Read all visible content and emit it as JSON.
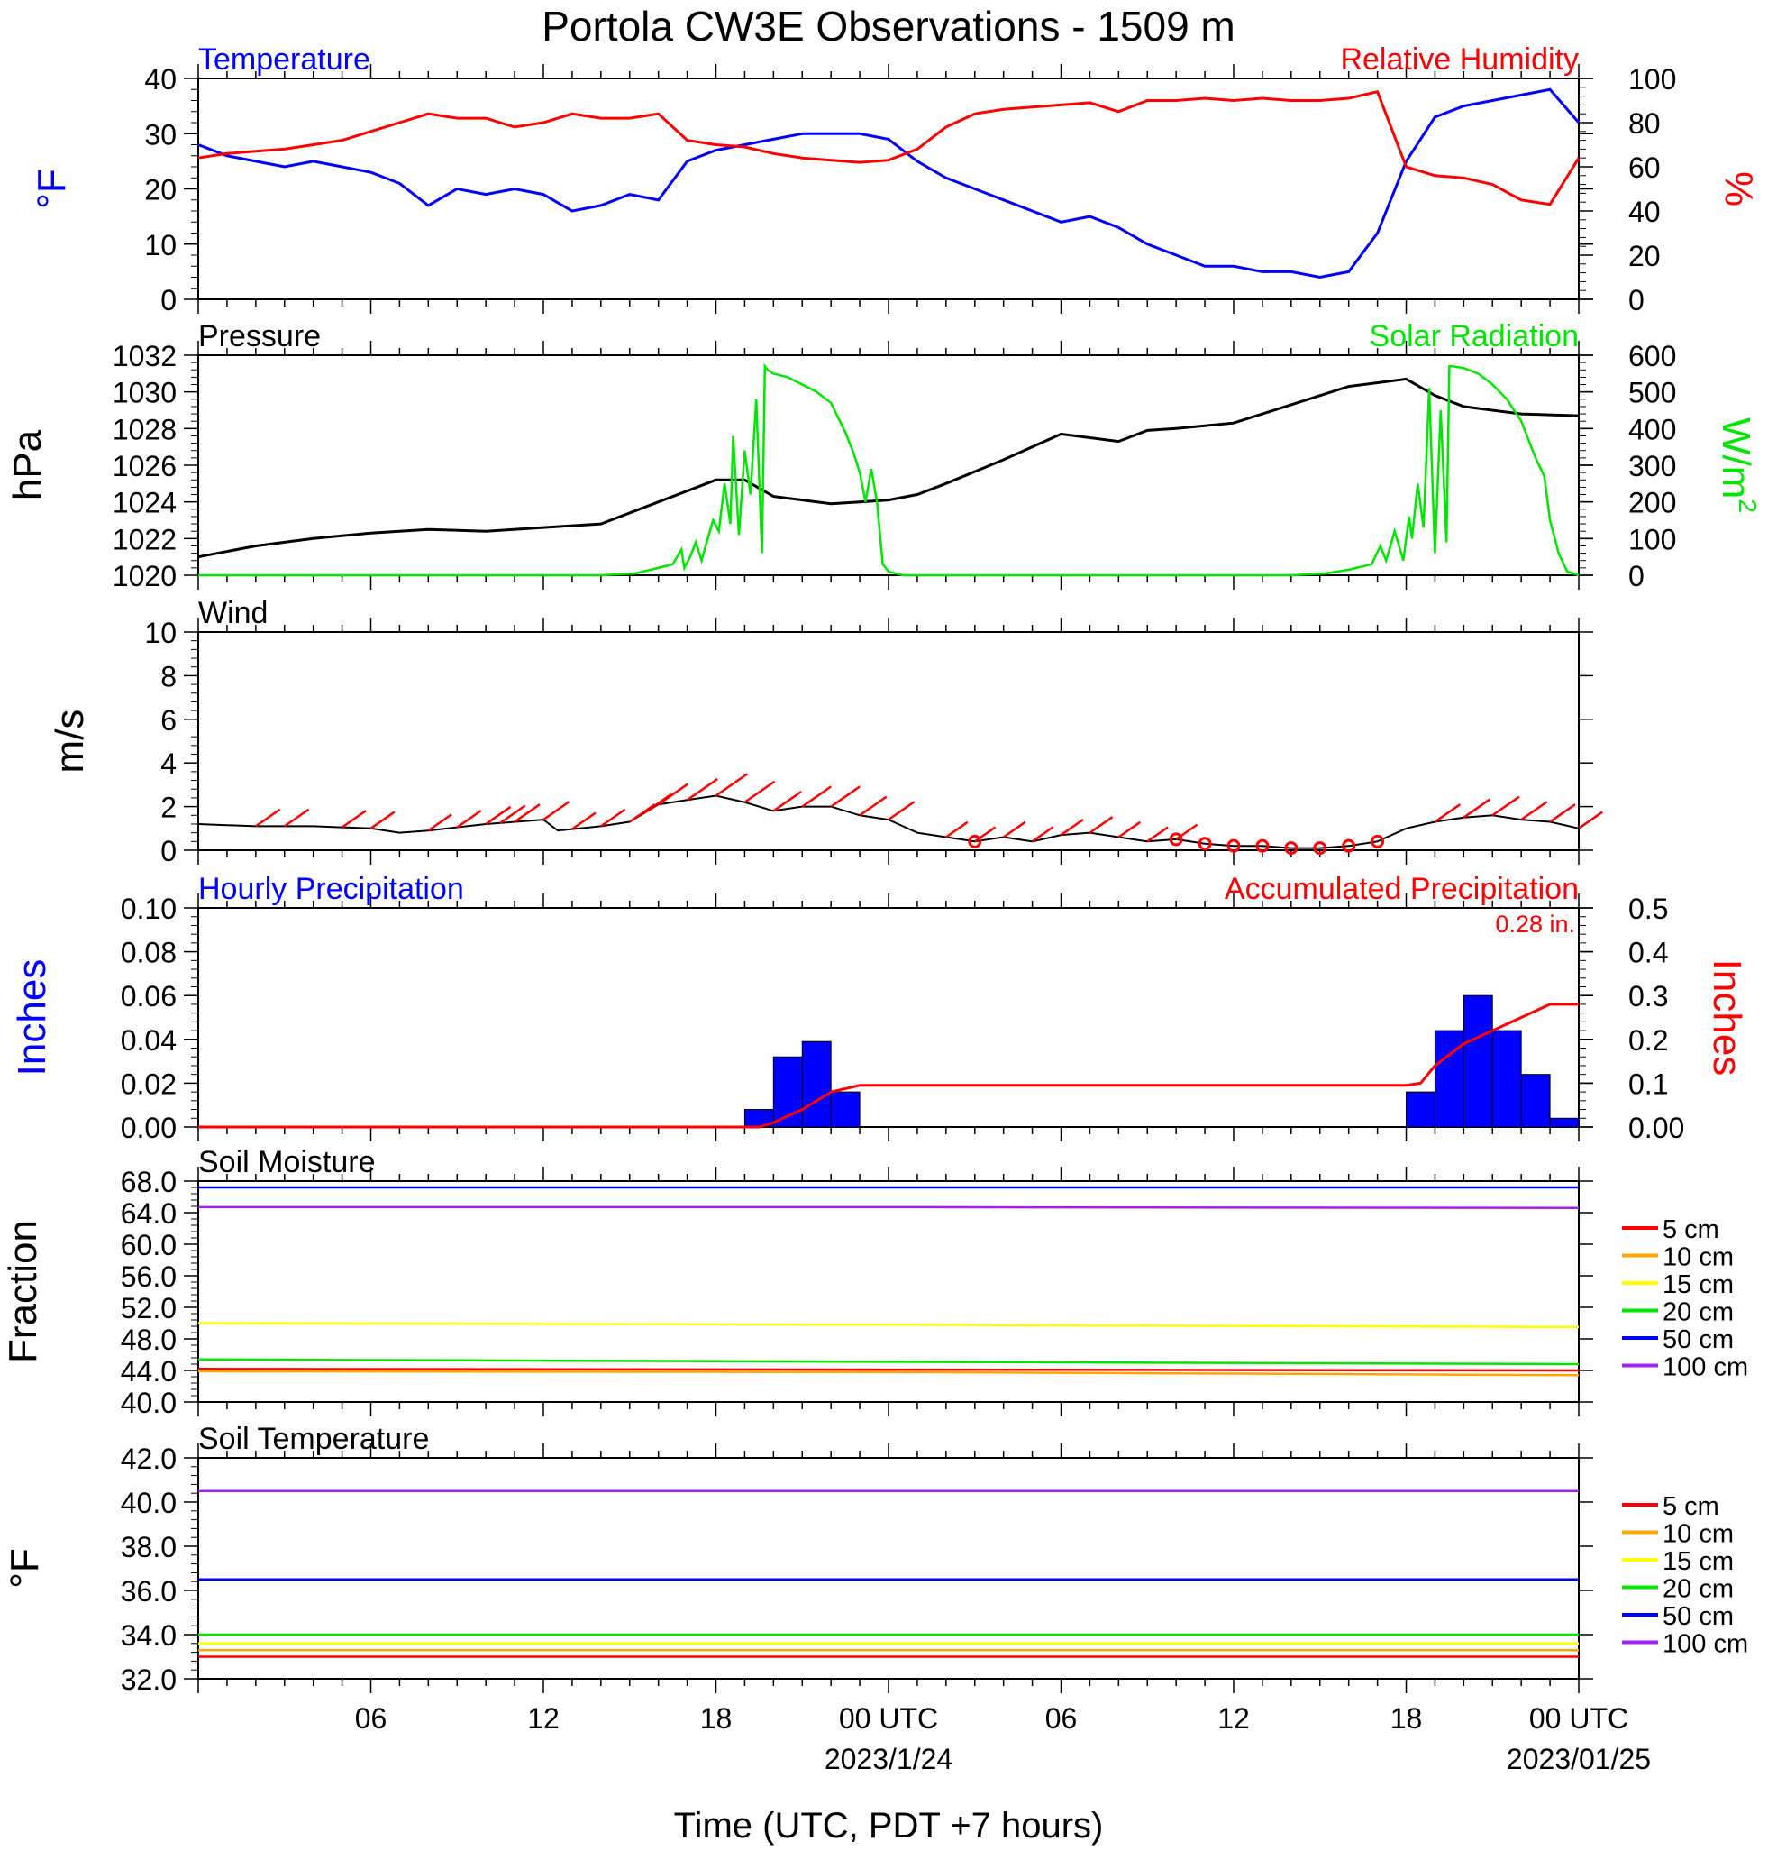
{
  "title": "Portola CW3E Observations - 1509 m",
  "xlabel": "Time (UTC, PDT +7 hours)",
  "x_ticks": [
    {
      "hour": 6,
      "label": "06",
      "date": ""
    },
    {
      "hour": 12,
      "label": "12",
      "date": ""
    },
    {
      "hour": 18,
      "label": "18",
      "date": ""
    },
    {
      "hour": 24,
      "label": "00 UTC",
      "date": "2023/1/24"
    },
    {
      "hour": 30,
      "label": "06",
      "date": ""
    },
    {
      "hour": 36,
      "label": "12",
      "date": ""
    },
    {
      "hour": 42,
      "label": "18",
      "date": ""
    },
    {
      "hour": 48,
      "label": "00 UTC",
      "date": "2023/01/25"
    }
  ],
  "colors": {
    "blue": "#0000ff",
    "red": "#ff0000",
    "green": "#00e600",
    "black": "#000000",
    "orange": "#ffa500",
    "yellow": "#ffff00",
    "purple": "#a020f0",
    "fill_blue": "#0000ff"
  },
  "chart_data": [
    {
      "id": "temp_rh",
      "type": "line",
      "left_title": "Temperature",
      "right_title": "Relative Humidity",
      "ylabel_left": "°F",
      "ylabel_right": "%",
      "ylim_left": [
        0,
        40
      ],
      "ylim_right": [
        0,
        100
      ],
      "yticks_left": [
        "0",
        "10",
        "20",
        "30",
        "40"
      ],
      "yticks_right": [
        "0",
        "20",
        "40",
        "60",
        "80",
        "100"
      ],
      "xlim_hours": [
        0,
        48
      ],
      "series": [
        {
          "axis": "left",
          "color": "#0000ff",
          "x": [
            0,
            1,
            2,
            3,
            4,
            5,
            6,
            7,
            8,
            9,
            10,
            11,
            12,
            13,
            14,
            15,
            16,
            17,
            18,
            19,
            20,
            21,
            22,
            23,
            24,
            25,
            26,
            27,
            28,
            29,
            30,
            31,
            32,
            33,
            34,
            35,
            36,
            37,
            38,
            39,
            40,
            41,
            42,
            43,
            44,
            45,
            46,
            47,
            48
          ],
          "y": [
            28,
            26,
            25,
            24,
            25,
            24,
            23,
            21,
            17,
            20,
            19,
            20,
            19,
            16,
            17,
            19,
            18,
            25,
            27,
            28,
            29,
            30,
            30,
            30,
            29,
            25,
            22,
            20,
            18,
            16,
            14,
            15,
            13,
            10,
            8,
            6,
            6,
            5,
            5,
            4,
            5,
            12,
            25,
            33,
            35,
            36,
            37,
            38,
            32
          ]
        },
        {
          "axis": "right",
          "color": "#ff0000",
          "x": [
            0,
            1,
            2,
            3,
            4,
            5,
            6,
            7,
            8,
            9,
            10,
            11,
            12,
            13,
            14,
            15,
            16,
            17,
            18,
            19,
            20,
            21,
            22,
            23,
            24,
            25,
            26,
            27,
            28,
            29,
            30,
            31,
            32,
            33,
            34,
            35,
            36,
            37,
            38,
            39,
            40,
            41,
            42,
            43,
            44,
            45,
            46,
            47,
            48
          ],
          "y": [
            64,
            66,
            67,
            68,
            70,
            72,
            76,
            80,
            84,
            82,
            82,
            78,
            80,
            84,
            82,
            82,
            84,
            72,
            70,
            69,
            66,
            64,
            63,
            62,
            63,
            68,
            78,
            84,
            86,
            87,
            88,
            89,
            85,
            90,
            90,
            91,
            90,
            91,
            90,
            90,
            91,
            94,
            60,
            56,
            55,
            52,
            45,
            43,
            64
          ]
        }
      ]
    },
    {
      "id": "pressure_solar",
      "type": "line",
      "left_title": "Pressure",
      "right_title": "Solar Radiation",
      "ylabel_left": "hPa",
      "ylabel_right": "W/m",
      "ylabel_right_sup": "2",
      "ylim_left": [
        1020,
        1032
      ],
      "ylim_right": [
        0,
        600
      ],
      "yticks_left": [
        "1020",
        "1022",
        "1024",
        "1026",
        "1028",
        "1030",
        "1032"
      ],
      "yticks_right": [
        "0",
        "100",
        "200",
        "300",
        "400",
        "500",
        "600"
      ],
      "series": [
        {
          "axis": "left",
          "color": "#000000",
          "x": [
            0,
            2,
            4,
            6,
            8,
            10,
            12,
            14,
            16,
            18,
            19,
            20,
            21,
            22,
            23,
            24,
            25,
            26,
            28,
            30,
            32,
            33,
            34,
            36,
            38,
            40,
            42,
            43,
            44,
            46,
            48
          ],
          "y": [
            1021.0,
            1021.6,
            1022.0,
            1022.3,
            1022.5,
            1022.4,
            1022.6,
            1022.8,
            1024.0,
            1025.2,
            1025.2,
            1024.3,
            1024.1,
            1023.9,
            1024.0,
            1024.1,
            1024.4,
            1025.0,
            1026.3,
            1027.7,
            1027.3,
            1027.9,
            1028.0,
            1028.3,
            1029.3,
            1030.3,
            1030.7,
            1029.8,
            1029.2,
            1028.8,
            1028.7
          ]
        },
        {
          "axis": "right",
          "color": "#00e600",
          "x": [
            0,
            14,
            15.2,
            16,
            16.5,
            16.8,
            16.9,
            17.1,
            17.3,
            17.5,
            17.9,
            18.1,
            18.3,
            18.5,
            18.6,
            18.8,
            19.0,
            19.2,
            19.4,
            19.6,
            19.7,
            19.8,
            20.0,
            20.5,
            21.0,
            21.5,
            22.0,
            22.5,
            22.8,
            23.0,
            23.2,
            23.4,
            23.6,
            23.8,
            24.0,
            24.5,
            38,
            39.2,
            40,
            40.8,
            41.1,
            41.3,
            41.6,
            41.9,
            42.1,
            42.2,
            42.4,
            42.6,
            42.8,
            43.0,
            43.2,
            43.4,
            43.5,
            43.6,
            44.0,
            44.5,
            45.0,
            45.5,
            46.0,
            46.5,
            46.8,
            47.0,
            47.3,
            47.6,
            48
          ],
          "y": [
            0,
            0,
            5,
            20,
            30,
            70,
            20,
            50,
            90,
            40,
            150,
            120,
            250,
            140,
            380,
            110,
            340,
            220,
            480,
            60,
            570,
            560,
            550,
            540,
            520,
            500,
            470,
            390,
            330,
            280,
            200,
            290,
            200,
            30,
            10,
            0,
            0,
            5,
            15,
            30,
            80,
            40,
            120,
            40,
            160,
            100,
            250,
            130,
            510,
            60,
            450,
            90,
            570,
            570,
            565,
            550,
            520,
            480,
            420,
            320,
            270,
            150,
            60,
            10,
            0
          ]
        }
      ]
    },
    {
      "id": "wind",
      "type": "line",
      "left_title": "Wind",
      "ylabel_left": "m/s",
      "ylim_left": [
        0,
        10
      ],
      "yticks_left": [
        "0",
        "2",
        "4",
        "6",
        "8",
        "10"
      ],
      "series": [
        {
          "axis": "left",
          "color": "#000000",
          "x": [
            0,
            2,
            4,
            6,
            7,
            8,
            10,
            12,
            12.5,
            14,
            15,
            16,
            17,
            18,
            19,
            20,
            21,
            22,
            23,
            24,
            25,
            26,
            27,
            28,
            29,
            30,
            31,
            32,
            33,
            34,
            35,
            36,
            37,
            38,
            39,
            40,
            41,
            42,
            43,
            44,
            45,
            46,
            47,
            48
          ],
          "y": [
            1.2,
            1.1,
            1.1,
            1.0,
            0.8,
            0.9,
            1.2,
            1.4,
            0.9,
            1.1,
            1.3,
            2.1,
            2.3,
            2.5,
            2.2,
            1.8,
            2.0,
            2.0,
            1.6,
            1.4,
            0.8,
            0.6,
            0.4,
            0.6,
            0.4,
            0.7,
            0.8,
            0.6,
            0.4,
            0.5,
            0.3,
            0.2,
            0.2,
            0.1,
            0.1,
            0.2,
            0.4,
            1.0,
            1.3,
            1.5,
            1.6,
            1.4,
            1.3,
            1.0
          ]
        }
      ],
      "barbs_hours": [
        2,
        3,
        5,
        6,
        8,
        9,
        10,
        10.5,
        11,
        12,
        13,
        14,
        15,
        15.5,
        16,
        17,
        18,
        19,
        20,
        21,
        22,
        23,
        24,
        26,
        27,
        28,
        29,
        30,
        31,
        32,
        33,
        34,
        43,
        44,
        45,
        46,
        47,
        48
      ],
      "calm_hours": [
        27,
        34,
        35,
        36,
        37,
        38,
        39,
        40,
        41
      ]
    },
    {
      "id": "precip",
      "type": "bar",
      "left_title": "Hourly Precipitation",
      "right_title": "Accumulated Precipitation",
      "annotation": "0.28 in.",
      "ylabel_left": "Inches",
      "ylabel_right": "Inches",
      "ylim_left": [
        0,
        0.1
      ],
      "ylim_right": [
        0,
        0.5
      ],
      "yticks_left": [
        "0.00",
        "0.02",
        "0.04",
        "0.06",
        "0.08",
        "0.10"
      ],
      "yticks_right": [
        "0.00",
        "0.1",
        "0.2",
        "0.3",
        "0.4",
        "0.5"
      ],
      "bars": [
        {
          "start": 19,
          "value": 0.008
        },
        {
          "start": 20,
          "value": 0.032
        },
        {
          "start": 21,
          "value": 0.039
        },
        {
          "start": 22,
          "value": 0.016
        },
        {
          "start": 42,
          "value": 0.016
        },
        {
          "start": 43,
          "value": 0.044
        },
        {
          "start": 44,
          "value": 0.06
        },
        {
          "start": 45,
          "value": 0.044
        },
        {
          "start": 46,
          "value": 0.024
        },
        {
          "start": 47,
          "value": 0.004
        }
      ],
      "accum": {
        "color": "#ff0000",
        "x": [
          0,
          19.5,
          20,
          21,
          22,
          23,
          42,
          42.5,
          43,
          44,
          45,
          46,
          47,
          48
        ],
        "y": [
          0,
          0,
          0.01,
          0.04,
          0.08,
          0.095,
          0.095,
          0.1,
          0.14,
          0.19,
          0.22,
          0.25,
          0.28,
          0.28
        ]
      }
    },
    {
      "id": "soil_moisture",
      "type": "line",
      "left_title": "Soil Moisture",
      "ylabel_left": "Fraction",
      "ylim_left": [
        40,
        68
      ],
      "yticks_left": [
        "40.0",
        "44.0",
        "48.0",
        "52.0",
        "56.0",
        "60.0",
        "64.0",
        "68.0"
      ],
      "legend": [
        "5 cm",
        "10 cm",
        "15 cm",
        "20 cm",
        "50 cm",
        "100 cm"
      ],
      "series": [
        {
          "name": "5 cm",
          "color": "#ff0000",
          "x": [
            0,
            24,
            48
          ],
          "y": [
            44.2,
            44.1,
            44.0
          ]
        },
        {
          "name": "10 cm",
          "color": "#ffa500",
          "x": [
            0,
            24,
            48
          ],
          "y": [
            43.9,
            43.8,
            43.4
          ]
        },
        {
          "name": "15 cm",
          "color": "#ffff00",
          "x": [
            0,
            24,
            48
          ],
          "y": [
            50.0,
            49.8,
            49.5
          ]
        },
        {
          "name": "20 cm",
          "color": "#00e600",
          "x": [
            0,
            24,
            48
          ],
          "y": [
            45.4,
            45.1,
            44.8
          ]
        },
        {
          "name": "50 cm",
          "color": "#0000ff",
          "x": [
            0,
            24,
            48
          ],
          "y": [
            67.2,
            67.2,
            67.2
          ]
        },
        {
          "name": "100 cm",
          "color": "#a020f0",
          "x": [
            0,
            24,
            48
          ],
          "y": [
            64.7,
            64.7,
            64.6
          ]
        }
      ]
    },
    {
      "id": "soil_temp",
      "type": "line",
      "left_title": "Soil Temperature",
      "ylabel_left": "°F",
      "ylim_left": [
        32,
        42
      ],
      "yticks_left": [
        "32.0",
        "34.0",
        "36.0",
        "38.0",
        "40.0",
        "42.0"
      ],
      "legend": [
        "5 cm",
        "10 cm",
        "15 cm",
        "20 cm",
        "50 cm",
        "100 cm"
      ],
      "series": [
        {
          "name": "5 cm",
          "color": "#ff0000",
          "x": [
            0,
            48
          ],
          "y": [
            33.0,
            33.0
          ]
        },
        {
          "name": "10 cm",
          "color": "#ffa500",
          "x": [
            0,
            48
          ],
          "y": [
            33.3,
            33.3
          ]
        },
        {
          "name": "15 cm",
          "color": "#ffff00",
          "x": [
            0,
            48
          ],
          "y": [
            33.6,
            33.6
          ]
        },
        {
          "name": "20 cm",
          "color": "#00e600",
          "x": [
            0,
            48
          ],
          "y": [
            34.0,
            34.0
          ]
        },
        {
          "name": "50 cm",
          "color": "#0000ff",
          "x": [
            0,
            48
          ],
          "y": [
            36.5,
            36.5
          ]
        },
        {
          "name": "100 cm",
          "color": "#a020f0",
          "x": [
            0,
            48
          ],
          "y": [
            40.5,
            40.5
          ]
        }
      ]
    }
  ]
}
